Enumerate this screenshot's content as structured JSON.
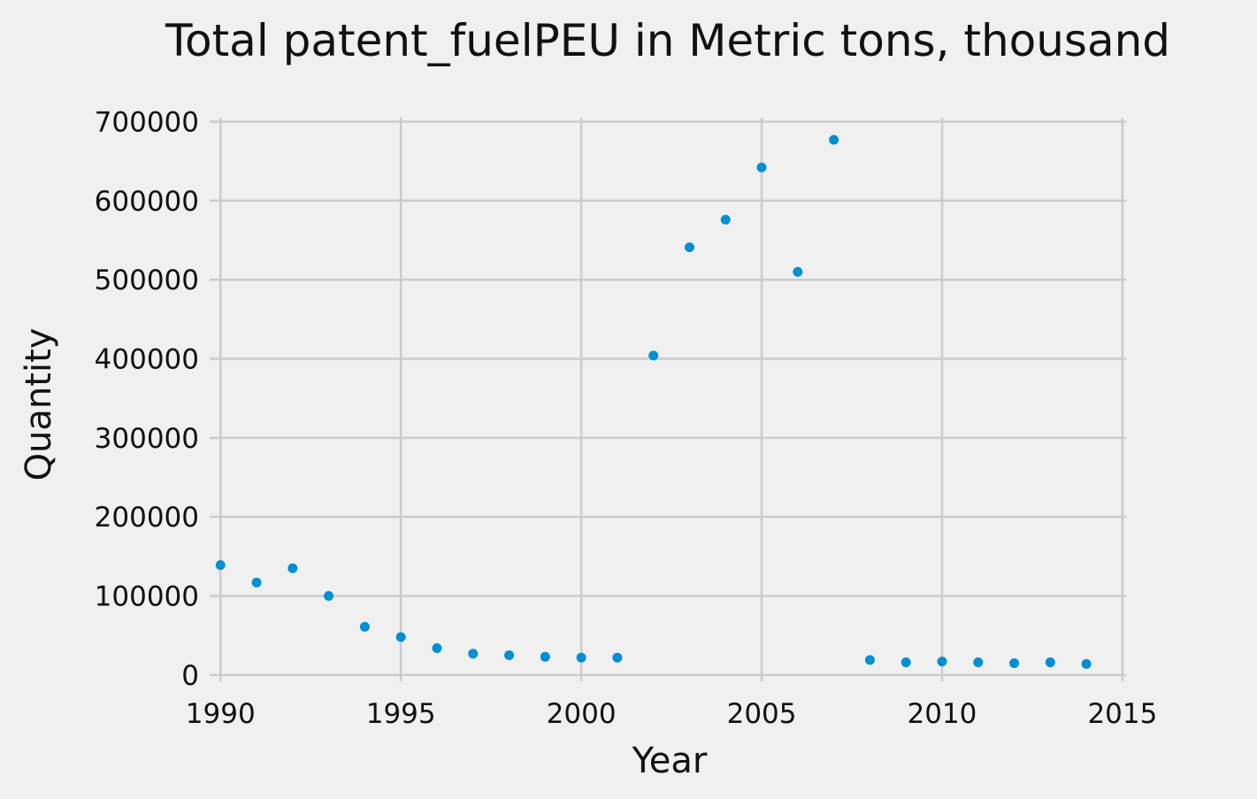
{
  "chart_data": {
    "type": "scatter",
    "title": "Total patent_fuelPEU in Metric tons,  thousand",
    "xlabel": "Year",
    "ylabel": "Quantity",
    "xlim": [
      1989.7,
      2015.1
    ],
    "ylim": [
      -8000,
      705000
    ],
    "xticks": [
      1990,
      1995,
      2000,
      2005,
      2010,
      2015
    ],
    "yticks": [
      0,
      100000,
      200000,
      300000,
      400000,
      500000,
      600000,
      700000
    ],
    "grid": true,
    "marker_color": "#008fd5",
    "background": "#f0f0f0",
    "series": [
      {
        "x": [
          1990,
          1991,
          1992,
          1993,
          1994,
          1995,
          1996,
          1997,
          1998,
          1999,
          2000,
          2001,
          2002,
          2003,
          2004,
          2005,
          2006,
          2007,
          2008,
          2009,
          2010,
          2011,
          2012,
          2013,
          2014
        ],
        "values": [
          139000,
          117000,
          135000,
          100000,
          61000,
          48000,
          34000,
          27000,
          25000,
          23000,
          22000,
          22000,
          404000,
          541000,
          576000,
          642000,
          510000,
          677000,
          19000,
          16000,
          17000,
          16000,
          15000,
          16000,
          14000
        ]
      }
    ]
  }
}
